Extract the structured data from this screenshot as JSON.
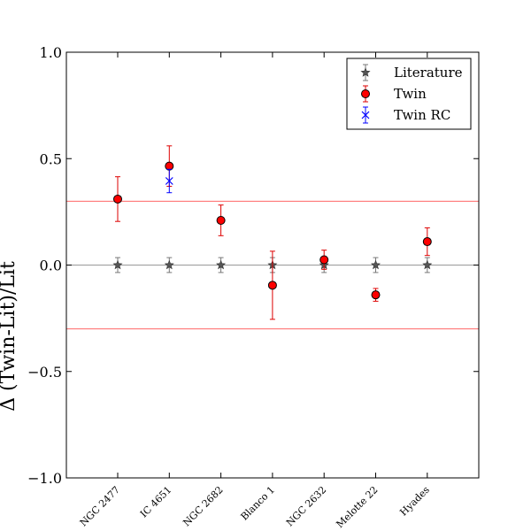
{
  "chart_data": {
    "type": "scatter",
    "title": "",
    "xlabel": "",
    "ylabel": "Δ (Twin-Lit)/Lit",
    "ylim": [
      -1.0,
      1.0
    ],
    "yticks": [
      1.0,
      0.5,
      0.0,
      -0.5,
      -1.0
    ],
    "ytick_labels": [
      "1.0",
      "0.5",
      "0.0",
      "−0.5",
      "−1.0"
    ],
    "categories": [
      "NGC 2477",
      "IC 4651",
      "NGC 2682",
      "Blanco 1",
      "NGC 2632",
      "Melotte 22",
      "Hyades"
    ],
    "reference_lines": [
      {
        "y": 0.0,
        "color": "#999999"
      },
      {
        "y": 0.3,
        "color": "#ff6666"
      },
      {
        "y": -0.3,
        "color": "#ff6666"
      }
    ],
    "series": [
      {
        "name": "Literature",
        "marker": "star",
        "color": "#555555",
        "error_color": "#777777",
        "points": [
          {
            "category": "NGC 2477",
            "y": 0.0,
            "err": 0.035
          },
          {
            "category": "IC 4651",
            "y": 0.0,
            "err": 0.035
          },
          {
            "category": "NGC 2682",
            "y": 0.0,
            "err": 0.035
          },
          {
            "category": "Blanco 1",
            "y": 0.0,
            "err": 0.035
          },
          {
            "category": "NGC 2632",
            "y": 0.0,
            "err": 0.035
          },
          {
            "category": "Melotte 22",
            "y": 0.0,
            "err": 0.035
          },
          {
            "category": "Hyades",
            "y": 0.0,
            "err": 0.035
          }
        ]
      },
      {
        "name": "Twin",
        "marker": "circle",
        "color": "#ff0000",
        "error_color": "#dd0000",
        "points": [
          {
            "category": "NGC 2477",
            "y": 0.31,
            "err": 0.105
          },
          {
            "category": "IC 4651",
            "y": 0.465,
            "err": 0.095
          },
          {
            "category": "NGC 2682",
            "y": 0.21,
            "err": 0.072
          },
          {
            "category": "Blanco 1",
            "y": -0.095,
            "err": 0.16
          },
          {
            "category": "NGC 2632",
            "y": 0.025,
            "err": 0.045
          },
          {
            "category": "Melotte 22",
            "y": -0.14,
            "err": 0.03
          },
          {
            "category": "Hyades",
            "y": 0.11,
            "err": 0.065
          }
        ]
      },
      {
        "name": "Twin RC",
        "marker": "x",
        "color": "#0000ff",
        "error_color": "#0000ff",
        "points": [
          {
            "category": "IC 4651",
            "y": 0.395,
            "err": 0.055
          }
        ]
      }
    ],
    "legend": {
      "position": "top-right",
      "entries": [
        "Literature",
        "Twin",
        "Twin RC"
      ]
    }
  }
}
